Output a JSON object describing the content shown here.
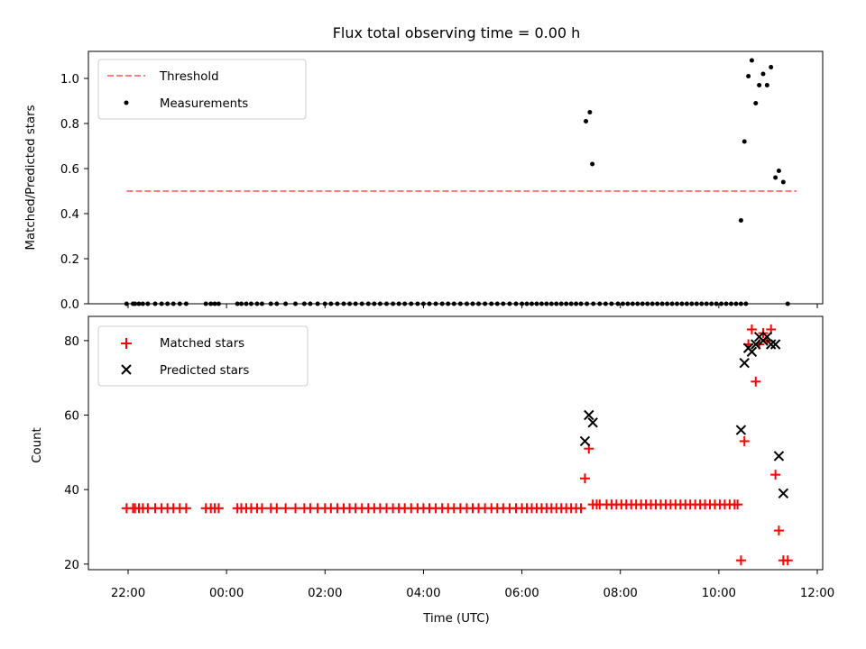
{
  "chart_data": [
    {
      "type": "scatter",
      "title": "Flux total observing time = 0.00 h",
      "xlabel": "",
      "ylabel": "Matched/Predicted stars",
      "ylim": [
        0.0,
        1.12
      ],
      "yticks": [
        "0.0",
        "0.2",
        "0.4",
        "0.6",
        "0.8",
        "1.0"
      ],
      "grid": false,
      "legend_position": "top-left",
      "threshold": {
        "name": "Threshold",
        "value": 0.5,
        "x_start": -0.03,
        "x_end": 13.58,
        "color": "#ff7f7f"
      },
      "series": [
        {
          "name": "Measurements",
          "color": "#000000",
          "points": [
            [
              -0.03,
              0
            ],
            [
              0.1,
              0
            ],
            [
              0.14,
              0
            ],
            [
              0.22,
              0
            ],
            [
              0.3,
              0
            ],
            [
              0.4,
              0
            ],
            [
              0.55,
              0
            ],
            [
              0.68,
              0
            ],
            [
              0.8,
              0
            ],
            [
              0.92,
              0
            ],
            [
              1.05,
              0
            ],
            [
              1.18,
              0
            ],
            [
              1.58,
              0
            ],
            [
              1.68,
              0
            ],
            [
              1.76,
              0
            ],
            [
              1.84,
              0
            ],
            [
              2.22,
              0
            ],
            [
              2.3,
              0
            ],
            [
              2.4,
              0
            ],
            [
              2.5,
              0
            ],
            [
              2.62,
              0
            ],
            [
              2.72,
              0
            ],
            [
              2.9,
              0
            ],
            [
              3.02,
              0
            ],
            [
              3.2,
              0
            ],
            [
              3.4,
              0
            ],
            [
              3.58,
              0
            ],
            [
              3.7,
              0
            ],
            [
              3.85,
              0
            ],
            [
              4.0,
              0
            ],
            [
              4.12,
              0
            ],
            [
              4.25,
              0
            ],
            [
              4.38,
              0
            ],
            [
              4.5,
              0
            ],
            [
              4.62,
              0
            ],
            [
              4.75,
              0
            ],
            [
              4.88,
              0
            ],
            [
              5.0,
              0
            ],
            [
              5.12,
              0
            ],
            [
              5.25,
              0
            ],
            [
              5.38,
              0
            ],
            [
              5.5,
              0
            ],
            [
              5.62,
              0
            ],
            [
              5.75,
              0
            ],
            [
              5.88,
              0
            ],
            [
              6.0,
              0
            ],
            [
              6.12,
              0
            ],
            [
              6.25,
              0
            ],
            [
              6.38,
              0
            ],
            [
              6.5,
              0
            ],
            [
              6.62,
              0
            ],
            [
              6.75,
              0
            ],
            [
              6.88,
              0
            ],
            [
              7.0,
              0
            ],
            [
              7.12,
              0
            ],
            [
              7.25,
              0
            ],
            [
              7.38,
              0
            ],
            [
              7.5,
              0
            ],
            [
              7.62,
              0
            ],
            [
              7.75,
              0
            ],
            [
              7.88,
              0
            ],
            [
              8.0,
              0
            ],
            [
              8.1,
              0
            ],
            [
              8.2,
              0
            ],
            [
              8.3,
              0
            ],
            [
              8.4,
              0
            ],
            [
              8.5,
              0
            ],
            [
              8.6,
              0
            ],
            [
              8.7,
              0
            ],
            [
              8.8,
              0
            ],
            [
              8.9,
              0
            ],
            [
              9.0,
              0
            ],
            [
              9.1,
              0
            ],
            [
              9.2,
              0
            ],
            [
              9.32,
              0
            ],
            [
              9.45,
              0
            ],
            [
              9.58,
              0
            ],
            [
              9.7,
              0
            ],
            [
              9.82,
              0
            ],
            [
              9.95,
              0
            ],
            [
              10.05,
              0
            ],
            [
              10.15,
              0
            ],
            [
              10.25,
              0
            ],
            [
              10.35,
              0
            ],
            [
              10.45,
              0
            ],
            [
              10.55,
              0
            ],
            [
              10.65,
              0
            ],
            [
              10.75,
              0
            ],
            [
              10.85,
              0
            ],
            [
              10.95,
              0
            ],
            [
              11.05,
              0
            ],
            [
              11.15,
              0
            ],
            [
              11.25,
              0
            ],
            [
              11.35,
              0
            ],
            [
              11.45,
              0
            ],
            [
              11.55,
              0
            ],
            [
              11.65,
              0
            ],
            [
              11.75,
              0
            ],
            [
              11.85,
              0
            ],
            [
              11.95,
              0
            ],
            [
              12.05,
              0
            ],
            [
              12.15,
              0
            ],
            [
              12.25,
              0
            ],
            [
              12.35,
              0
            ],
            [
              12.45,
              0
            ],
            [
              12.55,
              0
            ],
            [
              9.3,
              0.81
            ],
            [
              9.38,
              0.85
            ],
            [
              9.43,
              0.62
            ],
            [
              12.45,
              0.37
            ],
            [
              12.52,
              0.72
            ],
            [
              12.6,
              1.01
            ],
            [
              12.67,
              1.08
            ],
            [
              12.75,
              0.89
            ],
            [
              12.82,
              0.97
            ],
            [
              12.9,
              1.02
            ],
            [
              12.98,
              0.97
            ],
            [
              13.06,
              1.05
            ],
            [
              13.15,
              0.56
            ],
            [
              13.22,
              0.59
            ],
            [
              13.31,
              0.54
            ],
            [
              13.4,
              0.0
            ]
          ]
        }
      ]
    },
    {
      "type": "scatter",
      "title": "",
      "xlabel": "Time (UTC)",
      "ylabel": "Count",
      "ylim": [
        18.5,
        86.5
      ],
      "yticks": [
        "20",
        "40",
        "60",
        "80"
      ],
      "xticks": [
        "22:00",
        "00:00",
        "02:00",
        "04:00",
        "06:00",
        "08:00",
        "10:00",
        "12:00"
      ],
      "grid": false,
      "legend_position": "top-left",
      "series": [
        {
          "name": "Matched stars",
          "marker": "plus",
          "color": "#ff0000",
          "points": [
            [
              -0.03,
              35
            ],
            [
              0.1,
              35
            ],
            [
              0.14,
              35
            ],
            [
              0.22,
              35
            ],
            [
              0.3,
              35
            ],
            [
              0.4,
              35
            ],
            [
              0.55,
              35
            ],
            [
              0.68,
              35
            ],
            [
              0.8,
              35
            ],
            [
              0.92,
              35
            ],
            [
              1.05,
              35
            ],
            [
              1.18,
              35
            ],
            [
              1.58,
              35
            ],
            [
              1.68,
              35
            ],
            [
              1.76,
              35
            ],
            [
              1.84,
              35
            ],
            [
              2.22,
              35
            ],
            [
              2.3,
              35
            ],
            [
              2.4,
              35
            ],
            [
              2.5,
              35
            ],
            [
              2.62,
              35
            ],
            [
              2.72,
              35
            ],
            [
              2.9,
              35
            ],
            [
              3.02,
              35
            ],
            [
              3.2,
              35
            ],
            [
              3.4,
              35
            ],
            [
              3.58,
              35
            ],
            [
              3.7,
              35
            ],
            [
              3.85,
              35
            ],
            [
              4.0,
              35
            ],
            [
              4.12,
              35
            ],
            [
              4.25,
              35
            ],
            [
              4.38,
              35
            ],
            [
              4.5,
              35
            ],
            [
              4.62,
              35
            ],
            [
              4.75,
              35
            ],
            [
              4.88,
              35
            ],
            [
              5.0,
              35
            ],
            [
              5.12,
              35
            ],
            [
              5.25,
              35
            ],
            [
              5.38,
              35
            ],
            [
              5.5,
              35
            ],
            [
              5.62,
              35
            ],
            [
              5.75,
              35
            ],
            [
              5.88,
              35
            ],
            [
              6.0,
              35
            ],
            [
              6.12,
              35
            ],
            [
              6.25,
              35
            ],
            [
              6.38,
              35
            ],
            [
              6.5,
              35
            ],
            [
              6.62,
              35
            ],
            [
              6.75,
              35
            ],
            [
              6.88,
              35
            ],
            [
              7.0,
              35
            ],
            [
              7.12,
              35
            ],
            [
              7.25,
              35
            ],
            [
              7.38,
              35
            ],
            [
              7.5,
              35
            ],
            [
              7.62,
              35
            ],
            [
              7.75,
              35
            ],
            [
              7.88,
              35
            ],
            [
              8.0,
              35
            ],
            [
              8.1,
              35
            ],
            [
              8.2,
              35
            ],
            [
              8.3,
              35
            ],
            [
              8.4,
              35
            ],
            [
              8.5,
              35
            ],
            [
              8.6,
              35
            ],
            [
              8.7,
              35
            ],
            [
              8.8,
              35
            ],
            [
              8.9,
              35
            ],
            [
              9.0,
              35
            ],
            [
              9.1,
              35
            ],
            [
              9.2,
              35
            ],
            [
              9.28,
              43
            ],
            [
              9.36,
              51
            ],
            [
              9.44,
              36
            ],
            [
              9.52,
              36
            ],
            [
              9.58,
              36
            ],
            [
              9.72,
              36
            ],
            [
              9.82,
              36
            ],
            [
              9.92,
              36
            ],
            [
              10.02,
              36
            ],
            [
              10.12,
              36
            ],
            [
              10.22,
              36
            ],
            [
              10.32,
              36
            ],
            [
              10.42,
              36
            ],
            [
              10.52,
              36
            ],
            [
              10.62,
              36
            ],
            [
              10.72,
              36
            ],
            [
              10.82,
              36
            ],
            [
              10.92,
              36
            ],
            [
              11.02,
              36
            ],
            [
              11.12,
              36
            ],
            [
              11.22,
              36
            ],
            [
              11.32,
              36
            ],
            [
              11.42,
              36
            ],
            [
              11.52,
              36
            ],
            [
              11.62,
              36
            ],
            [
              11.72,
              36
            ],
            [
              11.82,
              36
            ],
            [
              11.92,
              36
            ],
            [
              12.02,
              36
            ],
            [
              12.12,
              36
            ],
            [
              12.22,
              36
            ],
            [
              12.32,
              36
            ],
            [
              12.38,
              36
            ],
            [
              12.45,
              21
            ],
            [
              12.52,
              53
            ],
            [
              12.6,
              79
            ],
            [
              12.67,
              83
            ],
            [
              12.75,
              69
            ],
            [
              12.82,
              79
            ],
            [
              12.9,
              82
            ],
            [
              12.98,
              80
            ],
            [
              13.06,
              83
            ],
            [
              13.15,
              44
            ],
            [
              13.22,
              29
            ],
            [
              13.31,
              21
            ],
            [
              13.4,
              21
            ]
          ]
        },
        {
          "name": "Predicted stars",
          "marker": "x",
          "color": "#000000",
          "points": [
            [
              9.28,
              53
            ],
            [
              9.36,
              60
            ],
            [
              9.44,
              58
            ],
            [
              12.45,
              56
            ],
            [
              12.52,
              74
            ],
            [
              12.6,
              78
            ],
            [
              12.67,
              77
            ],
            [
              12.75,
              79
            ],
            [
              12.82,
              81
            ],
            [
              12.9,
              80
            ],
            [
              12.98,
              81
            ],
            [
              13.06,
              79
            ],
            [
              13.15,
              79
            ],
            [
              13.22,
              49
            ],
            [
              13.31,
              39
            ]
          ]
        }
      ]
    }
  ]
}
